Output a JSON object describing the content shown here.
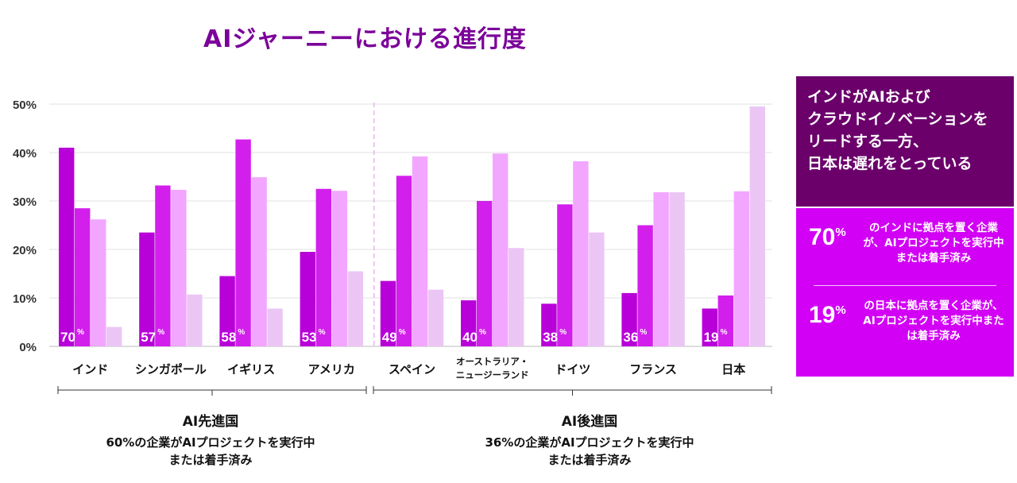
{
  "title": "AIジャーニーにおける進行度",
  "colors": {
    "title": "#7b0099",
    "s1": "#b800d8",
    "s2": "#d21fec",
    "s3": "#f2a6ff",
    "s4": "#ebc6f5",
    "panel_dark": "#6b006b",
    "panel_light": "#d200f5"
  },
  "groups": [
    {
      "heading": "AI先進国",
      "note": "60%の企業がAIプロジェクトを実行中\nまたは着手済み"
    },
    {
      "heading": "AI後進国",
      "note": "36%の企業がAIプロジェクトを実行中\nまたは着手済み"
    }
  ],
  "panel": {
    "headline": "インドがAIおよび\nクラウドイノベーションを\nリードする一方、\n日本は遅れをとっている",
    "stats": [
      {
        "value": "70",
        "unit": "%",
        "text": "のインドに拠点を置く企業が、AIプロジェクトを実行中または着手済み"
      },
      {
        "value": "19",
        "unit": "%",
        "text": "の日本に拠点を置く企業が、AIプロジェクトを実行中または着手済み"
      }
    ]
  },
  "chart_data": {
    "type": "bar",
    "ylim": [
      0,
      50
    ],
    "yticks": [
      "0%",
      "10%",
      "20%",
      "30%",
      "40%",
      "50%"
    ],
    "categories": [
      "インド",
      "シンガポール",
      "イギリス",
      "アメリカ",
      "スペイン",
      "オーストラリア・\nニュージーランド",
      "ドイツ",
      "フランス",
      "日本"
    ],
    "adoption_labels": [
      "70",
      "57",
      "58",
      "53",
      "49",
      "40",
      "38",
      "36",
      "19"
    ],
    "series": [
      {
        "values": [
          41,
          23.5,
          14.5,
          19.5,
          13.5,
          9.5,
          8.8,
          11,
          7.8
        ]
      },
      {
        "values": [
          28.5,
          33.2,
          42.7,
          32.5,
          35.2,
          30,
          29.3,
          25,
          10.5
        ]
      },
      {
        "values": [
          26.2,
          32.3,
          34.9,
          32.1,
          39.2,
          39.8,
          38.2,
          31.8,
          32
        ]
      },
      {
        "values": [
          4,
          10.7,
          7.8,
          15.5,
          11.7,
          20.3,
          23.5,
          31.8,
          49.5
        ]
      }
    ]
  }
}
